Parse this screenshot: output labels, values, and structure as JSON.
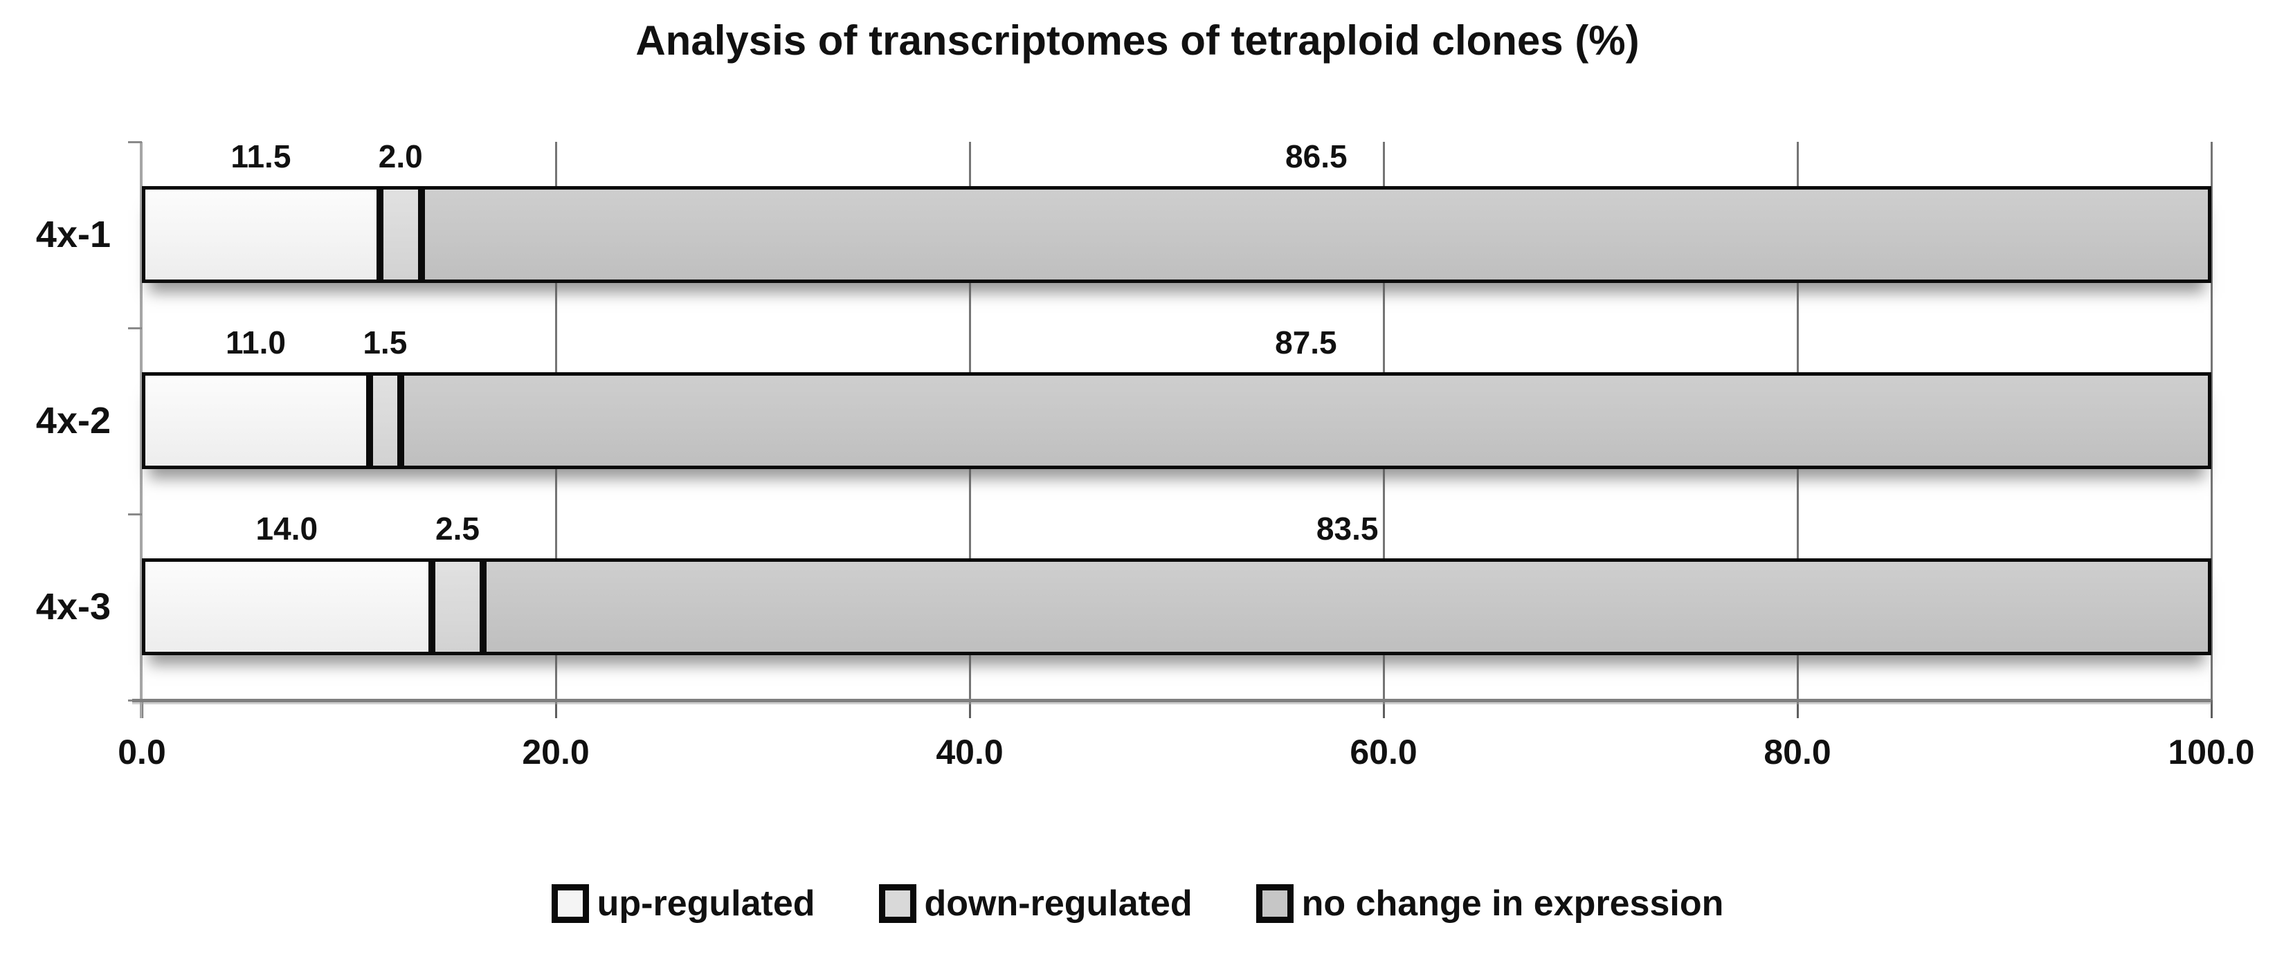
{
  "chart_data": {
    "type": "bar",
    "orientation": "horizontal",
    "stacked": true,
    "title": "Analysis of transcriptomes of tetraploid clones (%)",
    "categories": [
      "4x-1",
      "4x-2",
      "4x-3"
    ],
    "series": [
      {
        "name": "up-regulated",
        "values": [
          11.5,
          11.0,
          14.0
        ],
        "color": "#f4f4f4"
      },
      {
        "name": "down-regulated",
        "values": [
          2.0,
          1.5,
          2.5
        ],
        "color": "#d9d9d9"
      },
      {
        "name": "no change in expression",
        "values": [
          86.5,
          87.5,
          83.5
        ],
        "color": "#c6c6c6"
      }
    ],
    "data_labels": [
      [
        "11.5",
        "2.0",
        "86.5"
      ],
      [
        "11.0",
        "1.5",
        "87.5"
      ],
      [
        "14.0",
        "2.5",
        "83.5"
      ]
    ],
    "x_axis": {
      "min": 0,
      "max": 100,
      "tick_interval": 20,
      "tick_labels": [
        "0.0",
        "20.0",
        "40.0",
        "60.0",
        "80.0",
        "100.0"
      ]
    },
    "legend": {
      "position": "bottom",
      "entries": [
        "up-regulated",
        "down-regulated",
        "no change in expression"
      ]
    },
    "grid": true
  },
  "colors": {
    "background": "#ffffff",
    "text": "#111111",
    "bar_border": "#0a0a0a",
    "gridline": "#757575",
    "axis_line": "#7f7f7f"
  }
}
